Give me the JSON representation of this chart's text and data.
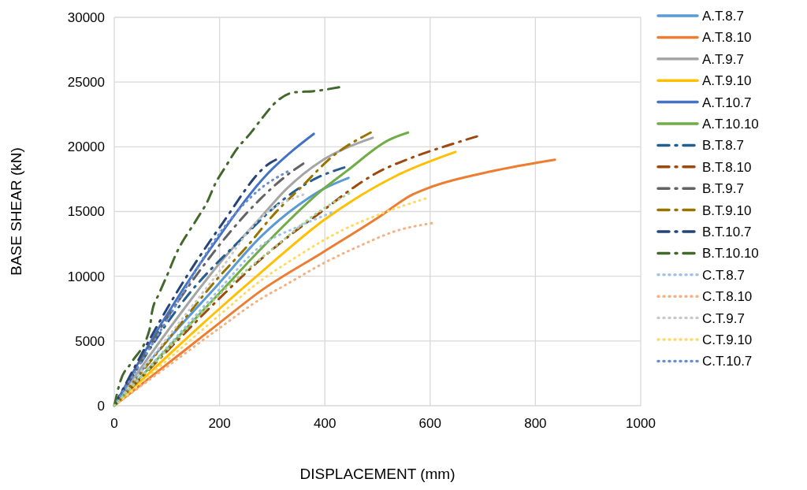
{
  "chart_data": {
    "type": "line",
    "xlabel": "DISPLACEMENT (mm)",
    "ylabel": "BASE SHEAR (kN)",
    "xlim": [
      0,
      1000
    ],
    "ylim": [
      0,
      30000
    ],
    "xticks": [
      0,
      200,
      400,
      600,
      800,
      1000
    ],
    "yticks": [
      0,
      5000,
      10000,
      15000,
      20000,
      25000,
      30000
    ],
    "grid": true,
    "legend": "right",
    "series": [
      {
        "name": "A.T.8.7",
        "color": "#5b9bd5",
        "line_style": "solid",
        "x": [
          0,
          50,
          100,
          200,
          277,
          350,
          400,
          445
        ],
        "values": [
          0,
          2600,
          5000,
          9500,
          13000,
          15500,
          16800,
          17600
        ]
      },
      {
        "name": "A.T.8.10",
        "color": "#ed7d31",
        "line_style": "solid",
        "x": [
          0,
          100,
          200,
          277,
          397,
          500,
          566,
          602,
          716,
          837
        ],
        "values": [
          0,
          3200,
          6400,
          8830,
          11870,
          14500,
          16300,
          16900,
          18100,
          19000
        ]
      },
      {
        "name": "A.T.9.7",
        "color": "#a5a5a5",
        "line_style": "solid",
        "x": [
          0,
          100,
          200,
          277,
          327,
          392,
          440,
          491
        ],
        "values": [
          0,
          5700,
          11000,
          14490,
          16740,
          18870,
          19900,
          20700
        ]
      },
      {
        "name": "A.T.9.10",
        "color": "#ffc000",
        "line_style": "solid",
        "x": [
          0,
          100,
          200,
          277,
          397,
          536,
          648
        ],
        "values": [
          0,
          3800,
          7500,
          10230,
          14300,
          17770,
          19600
        ]
      },
      {
        "name": "A.T.10.7",
        "color": "#4472c4",
        "line_style": "solid",
        "x": [
          0,
          93,
          192,
          292,
          341,
          379
        ],
        "values": [
          0,
          6570,
          12660,
          17950,
          19780,
          21000
        ]
      },
      {
        "name": "A.T.10.10",
        "color": "#70ad47",
        "line_style": "solid",
        "x": [
          0,
          100,
          200,
          277,
          397,
          442,
          521,
          558
        ],
        "values": [
          0,
          4400,
          8700,
          12050,
          16740,
          18140,
          20510,
          21100
        ]
      },
      {
        "name": "B.T.8.7",
        "color": "#255e91",
        "line_style": "dashed",
        "x": [
          0,
          142,
          242,
          322,
          380,
          437
        ],
        "values": [
          0,
          8640,
          12900,
          15950,
          17500,
          18400
        ]
      },
      {
        "name": "B.T.8.10",
        "color": "#9e480e",
        "line_style": "dashed",
        "x": [
          0,
          100,
          200,
          277,
          337,
          397,
          457,
          497,
          566,
          641,
          689
        ],
        "values": [
          0,
          4200,
          8300,
          11260,
          13270,
          15090,
          16920,
          17950,
          19170,
          20200,
          20800
        ]
      },
      {
        "name": "B.T.9.7",
        "color": "#636363",
        "line_style": "dashed",
        "x": [
          0,
          127,
          217,
          277,
          327,
          359
        ],
        "values": [
          0,
          8400,
          13270,
          15950,
          17770,
          18700
        ]
      },
      {
        "name": "B.T.9.10",
        "color": "#997300",
        "line_style": "dashed",
        "x": [
          0,
          100,
          197,
          252,
          302,
          356,
          412,
          487
        ],
        "values": [
          0,
          5000,
          9860,
          12300,
          14730,
          16920,
          19170,
          21100
        ]
      },
      {
        "name": "B.T.10.7",
        "color": "#264478",
        "line_style": "dashed",
        "x": [
          0,
          117,
          202,
          296,
          307
        ],
        "values": [
          0,
          8640,
          13880,
          18750,
          19000
        ]
      },
      {
        "name": "B.T.10.10",
        "color": "#43682b",
        "line_style": "dashed",
        "x": [
          0,
          12,
          33,
          67,
          72,
          85,
          102,
          117,
          157,
          176,
          192,
          212,
          232,
          259,
          281,
          308,
          341,
          379,
          427
        ],
        "values": [
          0,
          1950,
          3350,
          5900,
          7300,
          8640,
          10230,
          11690,
          14420,
          15700,
          17160,
          18500,
          19780,
          21060,
          22220,
          23490,
          24200,
          24300,
          24600
        ]
      },
      {
        "name": "C.T.8.7",
        "color": "#9dc3e6",
        "line_style": "dotted",
        "x": [
          0,
          100,
          200,
          277,
          352,
          412
        ],
        "values": [
          0,
          4500,
          9000,
          12300,
          13880,
          14900
        ]
      },
      {
        "name": "C.T.8.10",
        "color": "#f4b183",
        "line_style": "dotted",
        "x": [
          0,
          100,
          200,
          277,
          327,
          401,
          467,
          536,
          603
        ],
        "values": [
          0,
          3000,
          6000,
          8220,
          9370,
          11080,
          12360,
          13510,
          14100
        ]
      },
      {
        "name": "C.T.9.7",
        "color": "#c9c9c9",
        "line_style": "dotted",
        "x": [
          0,
          100,
          200,
          277,
          359
        ],
        "values": [
          0,
          5200,
          10400,
          14490,
          16300
        ]
      },
      {
        "name": "C.T.9.10",
        "color": "#ffd966",
        "line_style": "dotted",
        "x": [
          0,
          100,
          200,
          277,
          337,
          431,
          512,
          591
        ],
        "values": [
          0,
          3500,
          7000,
          9620,
          11260,
          13510,
          14910,
          16000
        ]
      },
      {
        "name": "C.T.10.7",
        "color": "#698ed0",
        "line_style": "dotted",
        "x": [
          0,
          100,
          207,
          277,
          329
        ],
        "values": [
          0,
          6600,
          13700,
          16740,
          18080
        ]
      },
      {
        "color": "#a9d18e",
        "line_style": "dotted",
        "x": [
          0,
          100,
          200,
          317,
          382,
          446
        ],
        "values": [
          0,
          4300,
          8600,
          12660,
          14790,
          16400
        ]
      }
    ]
  }
}
